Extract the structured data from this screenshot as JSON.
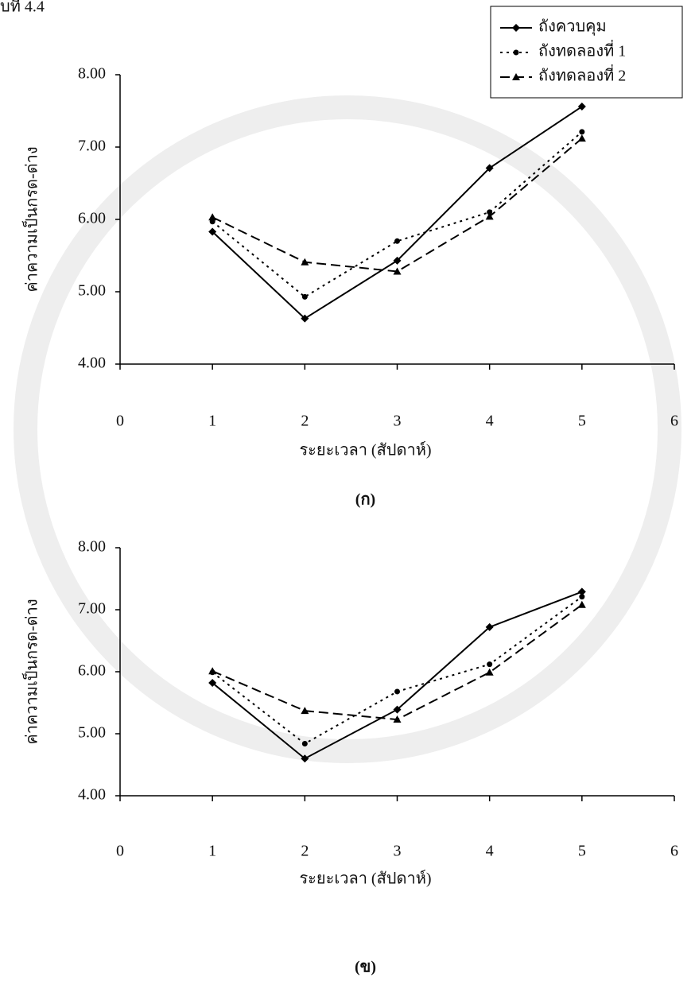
{
  "header": "บที่ 4.4",
  "chart_data": [
    {
      "type": "line",
      "caption": "(ก)",
      "xlabel": "ระยะเวลา (สัปดาห์)",
      "ylabel": "ค่าความเป็นกรด-ด่าง",
      "x": [
        1,
        2,
        3,
        4,
        5
      ],
      "xlim": [
        0,
        6
      ],
      "xticks": [
        0,
        1,
        2,
        3,
        4,
        5,
        6
      ],
      "ylim": [
        4,
        8
      ],
      "yticks": [
        {
          "value": 4,
          "label": "4.00"
        },
        {
          "value": 5,
          "label": "5.00"
        },
        {
          "value": 6,
          "label": "6.00"
        },
        {
          "value": 7,
          "label": "7.00"
        },
        {
          "value": 8,
          "label": "8.00"
        }
      ],
      "legend": "upper right",
      "series": [
        {
          "name": "ถังควบคุม",
          "color": "#000000",
          "marker": "diamond",
          "line_style": "solid",
          "values": [
            5.83,
            4.63,
            5.43,
            6.71,
            7.56
          ]
        },
        {
          "name": "ถังทดลองที่ 1",
          "color": "#000000",
          "marker": "circle",
          "line_style": "dotted",
          "values": [
            5.97,
            4.93,
            5.7,
            6.1,
            7.21
          ]
        },
        {
          "name": "ถังทดลองที่ 2",
          "color": "#000000",
          "marker": "triangle",
          "line_style": "dashed",
          "values": [
            6.03,
            5.41,
            5.28,
            6.04,
            7.12
          ]
        }
      ]
    },
    {
      "type": "line",
      "caption": "(ข)",
      "xlabel": "ระยะเวลา (สัปดาห์)",
      "ylabel": "ค่าความเป็นกรด-ด่าง",
      "x": [
        1,
        2,
        3,
        4,
        5
      ],
      "xlim": [
        0,
        6
      ],
      "xticks": [
        0,
        1,
        2,
        3,
        4,
        5,
        6
      ],
      "ylim": [
        4,
        8
      ],
      "yticks": [
        {
          "value": 4,
          "label": "4.00"
        },
        {
          "value": 5,
          "label": "5.00"
        },
        {
          "value": 6,
          "label": "6.00"
        },
        {
          "value": 7,
          "label": "7.00"
        },
        {
          "value": 8,
          "label": "8.00"
        }
      ],
      "series": [
        {
          "color": "#000000",
          "marker": "diamond",
          "line_style": "solid",
          "values": [
            5.82,
            4.6,
            5.39,
            6.72,
            7.29
          ]
        },
        {
          "color": "#000000",
          "marker": "circle",
          "line_style": "dotted",
          "values": [
            5.99,
            4.84,
            5.68,
            6.12,
            7.21
          ]
        },
        {
          "color": "#000000",
          "marker": "triangle",
          "line_style": "dashed",
          "values": [
            6.01,
            5.37,
            5.23,
            5.99,
            7.08
          ]
        }
      ]
    }
  ]
}
